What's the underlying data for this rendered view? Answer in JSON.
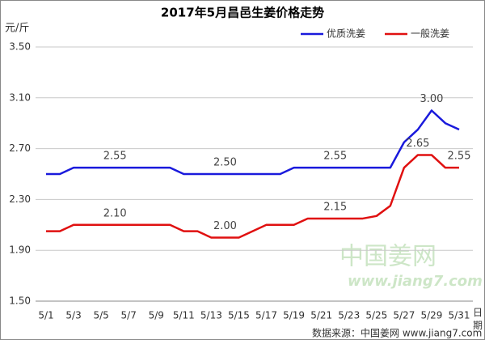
{
  "chart_data": {
    "type": "line",
    "title": "2017年5月昌邑生姜价格走势",
    "y_label": "元/斤",
    "x_label": "日期",
    "source": "数据来源：中国姜网 www.jiang7.com",
    "watermark": [
      "中国姜网",
      "www.jiang7.com"
    ],
    "categories": [
      "5/1",
      null,
      "5/3",
      null,
      "5/5",
      null,
      "5/7",
      null,
      "5/9",
      null,
      "5/11",
      null,
      "5/13",
      null,
      "5/15",
      null,
      "5/17",
      null,
      "5/19",
      null,
      "5/21",
      null,
      "5/23",
      null,
      "5/25",
      null,
      "5/27",
      null,
      "5/29",
      null,
      "5/31"
    ],
    "series": [
      {
        "name": "优质洗姜",
        "color": "#1a1adc",
        "values": [
          2.5,
          2.5,
          2.55,
          2.55,
          2.55,
          2.55,
          2.55,
          2.55,
          2.55,
          2.55,
          2.5,
          2.5,
          2.5,
          2.5,
          2.5,
          2.5,
          2.5,
          2.5,
          2.55,
          2.55,
          2.55,
          2.55,
          2.55,
          2.55,
          2.55,
          2.55,
          2.75,
          2.85,
          3.0,
          2.9,
          2.85
        ],
        "value_labels": [
          null,
          null,
          null,
          null,
          null,
          "2.55",
          null,
          null,
          null,
          null,
          null,
          null,
          null,
          "2.50",
          null,
          null,
          null,
          null,
          null,
          null,
          null,
          "2.55",
          null,
          null,
          null,
          null,
          null,
          null,
          "3.00",
          null,
          null
        ]
      },
      {
        "name": "一般洗姜",
        "color": "#e01010",
        "values": [
          2.05,
          2.05,
          2.1,
          2.1,
          2.1,
          2.1,
          2.1,
          2.1,
          2.1,
          2.1,
          2.05,
          2.05,
          2.0,
          2.0,
          2.0,
          2.05,
          2.1,
          2.1,
          2.1,
          2.15,
          2.15,
          2.15,
          2.15,
          2.15,
          2.17,
          2.25,
          2.55,
          2.65,
          2.65,
          2.55,
          2.55
        ],
        "value_labels": [
          null,
          null,
          null,
          null,
          null,
          "2.10",
          null,
          null,
          null,
          null,
          null,
          null,
          null,
          "2.00",
          null,
          null,
          null,
          null,
          null,
          null,
          null,
          "2.15",
          null,
          null,
          null,
          null,
          null,
          "2.65",
          null,
          null,
          "2.55"
        ]
      }
    ],
    "ylim": [
      1.5,
      3.5
    ],
    "yticks": [
      {
        "value": 1.5,
        "label": "1.50"
      },
      {
        "value": 1.9,
        "label": "1.90"
      },
      {
        "value": 2.3,
        "label": "2.30"
      },
      {
        "value": 2.7,
        "label": "2.70"
      },
      {
        "value": 3.1,
        "label": "3.10"
      },
      {
        "value": 3.5,
        "label": "3.50"
      }
    ],
    "grid": true,
    "legend": "top-right"
  }
}
